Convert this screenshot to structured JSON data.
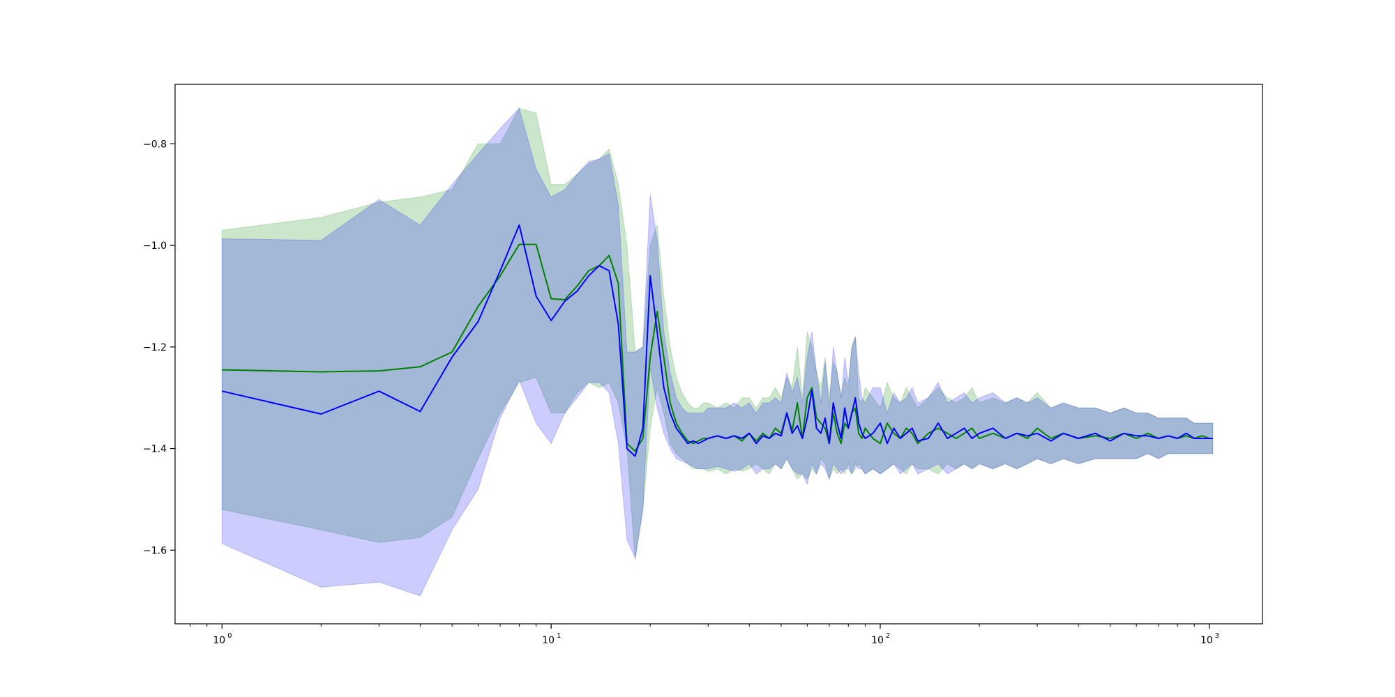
{
  "chart_data": {
    "type": "line",
    "title": "",
    "xlabel": "",
    "ylabel": "",
    "x_scale": "log",
    "xlim": [
      0.72,
      1450
    ],
    "ylim": [
      -1.745,
      -0.683
    ],
    "grid": false,
    "legend": null,
    "x_ticks": [
      {
        "value": 1,
        "label": "10",
        "exp": "0"
      },
      {
        "value": 10,
        "label": "10",
        "exp": "1"
      },
      {
        "value": 100,
        "label": "10",
        "exp": "2"
      },
      {
        "value": 1000,
        "label": "10",
        "exp": "3"
      }
    ],
    "y_ticks": [
      {
        "value": -0.8,
        "label": "−0.8"
      },
      {
        "value": -1.0,
        "label": "−1.0"
      },
      {
        "value": -1.2,
        "label": "−1.2"
      },
      {
        "value": -1.4,
        "label": "−1.4"
      },
      {
        "value": -1.6,
        "label": "−1.6"
      }
    ],
    "series": [
      {
        "color": "#008000",
        "band_color": "#008000",
        "band_opacity": 0.2,
        "x": [
          1,
          2,
          3,
          4,
          5,
          6,
          7,
          8,
          9,
          10,
          11,
          12,
          13,
          14,
          15,
          16,
          17,
          18,
          19,
          20,
          21,
          22,
          23,
          24,
          25,
          26,
          27,
          28,
          29,
          30,
          32,
          34,
          36,
          38,
          40,
          42,
          44,
          46,
          48,
          50,
          52,
          54,
          56,
          58,
          60,
          62,
          64,
          66,
          68,
          70,
          72,
          74,
          76,
          78,
          80,
          82,
          84,
          86,
          88,
          90,
          95,
          100,
          105,
          110,
          115,
          120,
          125,
          130,
          140,
          150,
          160,
          170,
          180,
          190,
          200,
          220,
          240,
          260,
          280,
          300,
          330,
          360,
          400,
          450,
          500,
          550,
          600,
          650,
          700,
          750,
          800,
          850,
          900,
          950,
          1000,
          1024
        ],
        "mean": [
          -1.245,
          -1.249,
          -1.247,
          -1.239,
          -1.21,
          -1.12,
          -1.06,
          -0.998,
          -0.998,
          -1.105,
          -1.107,
          -1.08,
          -1.05,
          -1.04,
          -1.02,
          -1.075,
          -1.39,
          -1.405,
          -1.38,
          -1.22,
          -1.13,
          -1.22,
          -1.31,
          -1.35,
          -1.37,
          -1.385,
          -1.39,
          -1.385,
          -1.38,
          -1.38,
          -1.375,
          -1.38,
          -1.375,
          -1.385,
          -1.37,
          -1.385,
          -1.37,
          -1.38,
          -1.36,
          -1.37,
          -1.33,
          -1.365,
          -1.31,
          -1.38,
          -1.3,
          -1.28,
          -1.34,
          -1.35,
          -1.36,
          -1.39,
          -1.33,
          -1.37,
          -1.39,
          -1.35,
          -1.36,
          -1.33,
          -1.32,
          -1.37,
          -1.38,
          -1.36,
          -1.38,
          -1.39,
          -1.35,
          -1.37,
          -1.38,
          -1.36,
          -1.37,
          -1.39,
          -1.37,
          -1.36,
          -1.37,
          -1.38,
          -1.37,
          -1.36,
          -1.38,
          -1.37,
          -1.38,
          -1.37,
          -1.38,
          -1.36,
          -1.38,
          -1.37,
          -1.38,
          -1.375,
          -1.38,
          -1.37,
          -1.38,
          -1.37,
          -1.38,
          -1.375,
          -1.38,
          -1.375,
          -1.38,
          -1.375,
          -1.38,
          -1.38
        ],
        "lower": [
          -1.52,
          -1.56,
          -1.585,
          -1.575,
          -1.535,
          -1.42,
          -1.33,
          -1.27,
          -1.26,
          -1.33,
          -1.33,
          -1.29,
          -1.27,
          -1.28,
          -1.27,
          -1.31,
          -1.4,
          -1.62,
          -1.52,
          -1.36,
          -1.28,
          -1.33,
          -1.39,
          -1.41,
          -1.42,
          -1.43,
          -1.44,
          -1.44,
          -1.44,
          -1.445,
          -1.44,
          -1.45,
          -1.44,
          -1.445,
          -1.44,
          -1.43,
          -1.44,
          -1.45,
          -1.43,
          -1.44,
          -1.42,
          -1.44,
          -1.46,
          -1.45,
          -1.46,
          -1.44,
          -1.45,
          -1.42,
          -1.43,
          -1.46,
          -1.44,
          -1.45,
          -1.44,
          -1.45,
          -1.43,
          -1.45,
          -1.44,
          -1.43,
          -1.44,
          -1.45,
          -1.44,
          -1.45,
          -1.44,
          -1.43,
          -1.44,
          -1.45,
          -1.43,
          -1.44,
          -1.44,
          -1.45,
          -1.43,
          -1.44,
          -1.43,
          -1.44,
          -1.43,
          -1.44,
          -1.43,
          -1.44,
          -1.43,
          -1.42,
          -1.43,
          -1.42,
          -1.43,
          -1.42,
          -1.42,
          -1.42,
          -1.42,
          -1.41,
          -1.42,
          -1.41,
          -1.41,
          -1.41,
          -1.41,
          -1.41,
          -1.41,
          -1.41
        ],
        "upper": [
          -0.97,
          -0.945,
          -0.915,
          -0.905,
          -0.89,
          -0.8,
          -0.8,
          -0.73,
          -0.74,
          -0.88,
          -0.88,
          -0.86,
          -0.84,
          -0.83,
          -0.81,
          -0.88,
          -1.0,
          -1.21,
          -1.2,
          -1.0,
          -0.96,
          -1.1,
          -1.2,
          -1.26,
          -1.29,
          -1.31,
          -1.32,
          -1.32,
          -1.31,
          -1.31,
          -1.32,
          -1.31,
          -1.32,
          -1.3,
          -1.3,
          -1.32,
          -1.3,
          -1.3,
          -1.28,
          -1.3,
          -1.26,
          -1.28,
          -1.2,
          -1.3,
          -1.17,
          -1.2,
          -1.25,
          -1.28,
          -1.22,
          -1.3,
          -1.23,
          -1.25,
          -1.3,
          -1.26,
          -1.28,
          -1.2,
          -1.18,
          -1.3,
          -1.31,
          -1.28,
          -1.3,
          -1.32,
          -1.27,
          -1.3,
          -1.31,
          -1.28,
          -1.3,
          -1.32,
          -1.3,
          -1.28,
          -1.3,
          -1.31,
          -1.3,
          -1.28,
          -1.31,
          -1.3,
          -1.31,
          -1.3,
          -1.31,
          -1.29,
          -1.32,
          -1.31,
          -1.32,
          -1.32,
          -1.33,
          -1.32,
          -1.33,
          -1.33,
          -1.34,
          -1.34,
          -1.34,
          -1.34,
          -1.35,
          -1.35,
          -1.35,
          -1.35
        ]
      },
      {
        "color": "#0000ff",
        "band_color": "#0000ff",
        "band_opacity": 0.2,
        "x": [
          1,
          2,
          3,
          4,
          5,
          6,
          7,
          8,
          9,
          10,
          11,
          12,
          13,
          14,
          15,
          16,
          17,
          18,
          19,
          20,
          21,
          22,
          23,
          24,
          25,
          26,
          27,
          28,
          29,
          30,
          32,
          34,
          36,
          38,
          40,
          42,
          44,
          46,
          48,
          50,
          52,
          54,
          56,
          58,
          60,
          62,
          64,
          66,
          68,
          70,
          72,
          74,
          76,
          78,
          80,
          82,
          84,
          86,
          88,
          90,
          95,
          100,
          105,
          110,
          115,
          120,
          125,
          130,
          140,
          150,
          160,
          170,
          180,
          190,
          200,
          220,
          240,
          260,
          280,
          300,
          330,
          360,
          400,
          450,
          500,
          550,
          600,
          650,
          700,
          750,
          800,
          850,
          900,
          950,
          1000,
          1024
        ],
        "mean": [
          -1.287,
          -1.332,
          -1.287,
          -1.327,
          -1.22,
          -1.15,
          -1.05,
          -0.96,
          -1.1,
          -1.148,
          -1.11,
          -1.09,
          -1.06,
          -1.04,
          -1.05,
          -1.155,
          -1.4,
          -1.415,
          -1.36,
          -1.06,
          -1.17,
          -1.28,
          -1.33,
          -1.36,
          -1.375,
          -1.39,
          -1.385,
          -1.39,
          -1.385,
          -1.38,
          -1.375,
          -1.38,
          -1.375,
          -1.38,
          -1.37,
          -1.39,
          -1.375,
          -1.38,
          -1.37,
          -1.375,
          -1.33,
          -1.37,
          -1.355,
          -1.38,
          -1.34,
          -1.285,
          -1.36,
          -1.37,
          -1.34,
          -1.39,
          -1.31,
          -1.35,
          -1.38,
          -1.32,
          -1.36,
          -1.33,
          -1.3,
          -1.35,
          -1.37,
          -1.38,
          -1.37,
          -1.35,
          -1.39,
          -1.36,
          -1.38,
          -1.37,
          -1.36,
          -1.385,
          -1.38,
          -1.35,
          -1.38,
          -1.37,
          -1.36,
          -1.38,
          -1.37,
          -1.36,
          -1.38,
          -1.37,
          -1.375,
          -1.37,
          -1.385,
          -1.37,
          -1.38,
          -1.37,
          -1.385,
          -1.37,
          -1.375,
          -1.375,
          -1.38,
          -1.375,
          -1.38,
          -1.37,
          -1.38,
          -1.38,
          -1.38,
          -1.38
        ],
        "lower": [
          -1.587,
          -1.673,
          -1.663,
          -1.69,
          -1.56,
          -1.48,
          -1.34,
          -1.265,
          -1.35,
          -1.39,
          -1.33,
          -1.3,
          -1.27,
          -1.27,
          -1.29,
          -1.39,
          -1.58,
          -1.615,
          -1.52,
          -1.24,
          -1.32,
          -1.37,
          -1.4,
          -1.42,
          -1.425,
          -1.43,
          -1.435,
          -1.44,
          -1.44,
          -1.44,
          -1.435,
          -1.44,
          -1.445,
          -1.44,
          -1.43,
          -1.45,
          -1.44,
          -1.44,
          -1.43,
          -1.44,
          -1.42,
          -1.44,
          -1.45,
          -1.45,
          -1.47,
          -1.43,
          -1.45,
          -1.43,
          -1.44,
          -1.46,
          -1.43,
          -1.44,
          -1.45,
          -1.44,
          -1.44,
          -1.45,
          -1.43,
          -1.44,
          -1.44,
          -1.45,
          -1.44,
          -1.45,
          -1.44,
          -1.43,
          -1.45,
          -1.44,
          -1.43,
          -1.45,
          -1.44,
          -1.43,
          -1.45,
          -1.44,
          -1.43,
          -1.44,
          -1.43,
          -1.44,
          -1.43,
          -1.44,
          -1.43,
          -1.42,
          -1.43,
          -1.42,
          -1.43,
          -1.42,
          -1.42,
          -1.42,
          -1.42,
          -1.41,
          -1.42,
          -1.41,
          -1.41,
          -1.41,
          -1.41,
          -1.41,
          -1.41,
          -1.41
        ],
        "upper": [
          -0.987,
          -0.99,
          -0.91,
          -0.96,
          -0.88,
          -0.82,
          -0.77,
          -0.73,
          -0.85,
          -0.905,
          -0.89,
          -0.86,
          -0.835,
          -0.83,
          -0.82,
          -0.92,
          -1.21,
          -1.21,
          -1.2,
          -0.9,
          -0.99,
          -1.17,
          -1.25,
          -1.3,
          -1.32,
          -1.33,
          -1.33,
          -1.33,
          -1.33,
          -1.32,
          -1.32,
          -1.32,
          -1.31,
          -1.32,
          -1.31,
          -1.33,
          -1.31,
          -1.31,
          -1.3,
          -1.31,
          -1.25,
          -1.29,
          -1.26,
          -1.31,
          -1.22,
          -1.17,
          -1.25,
          -1.31,
          -1.23,
          -1.32,
          -1.2,
          -1.25,
          -1.3,
          -1.22,
          -1.27,
          -1.2,
          -1.18,
          -1.25,
          -1.3,
          -1.31,
          -1.28,
          -1.28,
          -1.33,
          -1.29,
          -1.31,
          -1.3,
          -1.28,
          -1.31,
          -1.3,
          -1.27,
          -1.31,
          -1.3,
          -1.29,
          -1.31,
          -1.3,
          -1.29,
          -1.31,
          -1.3,
          -1.31,
          -1.3,
          -1.32,
          -1.31,
          -1.32,
          -1.32,
          -1.33,
          -1.32,
          -1.33,
          -1.33,
          -1.34,
          -1.34,
          -1.34,
          -1.34,
          -1.35,
          -1.35,
          -1.35,
          -1.35
        ]
      }
    ]
  }
}
